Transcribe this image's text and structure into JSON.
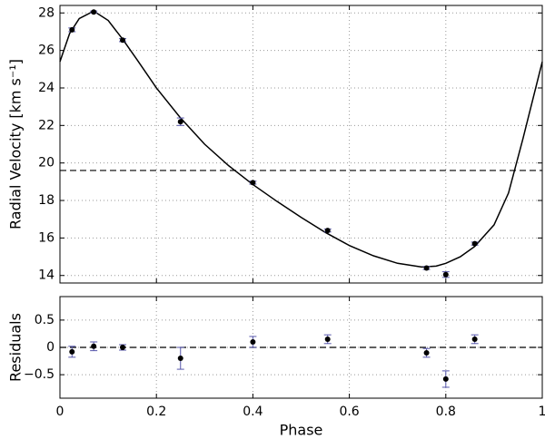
{
  "chart_data": [
    {
      "type": "scatter",
      "ylabel": "Radial Velocity [km s⁻¹]",
      "x": [
        0.025,
        0.07,
        0.13,
        0.25,
        0.4,
        0.555,
        0.76,
        0.8,
        0.86
      ],
      "values": [
        27.1,
        28.05,
        26.55,
        22.2,
        18.95,
        16.4,
        14.4,
        14.05,
        15.7
      ],
      "errors": [
        0.1,
        0.05,
        0.08,
        0.2,
        0.08,
        0.08,
        0.08,
        0.15,
        0.08
      ],
      "model": {
        "x": [
          0,
          0.02,
          0.04,
          0.07,
          0.1,
          0.13,
          0.16,
          0.2,
          0.25,
          0.3,
          0.35,
          0.4,
          0.45,
          0.5,
          0.55,
          0.6,
          0.65,
          0.7,
          0.75,
          0.78,
          0.8,
          0.83,
          0.86,
          0.9,
          0.93,
          0.96,
          1.0
        ],
        "values": [
          25.4,
          26.9,
          27.7,
          28.1,
          27.6,
          26.6,
          25.5,
          24.0,
          22.4,
          21.0,
          19.85,
          18.85,
          17.95,
          17.1,
          16.3,
          15.6,
          15.05,
          14.65,
          14.45,
          14.5,
          14.65,
          15.0,
          15.55,
          16.7,
          18.4,
          21.3,
          25.4
        ]
      },
      "hline": 19.6,
      "xlim": [
        0,
        1
      ],
      "xticks": [
        0,
        0.2,
        0.4,
        0.6,
        0.8,
        1
      ],
      "ylim": [
        13.6,
        28.4
      ],
      "yticks": [
        14,
        16,
        18,
        20,
        22,
        24,
        26,
        28
      ],
      "grid": true,
      "color": "#000000",
      "error_color": "#5555aa"
    },
    {
      "type": "scatter",
      "ylabel": "Residuals",
      "xlabel": "Phase",
      "x": [
        0.025,
        0.07,
        0.13,
        0.25,
        0.4,
        0.555,
        0.76,
        0.8,
        0.86
      ],
      "values": [
        -0.08,
        0.02,
        0.0,
        -0.2,
        0.1,
        0.15,
        -0.1,
        -0.58,
        0.15
      ],
      "errors": [
        0.1,
        0.08,
        0.05,
        0.2,
        0.1,
        0.08,
        0.08,
        0.15,
        0.08
      ],
      "hline": 0,
      "xlim": [
        0,
        1
      ],
      "xticks": [
        0,
        0.2,
        0.4,
        0.6,
        0.8,
        1
      ],
      "ylim": [
        -0.93,
        0.93
      ],
      "yticks": [
        {
          "value": -0.5,
          "label": "−0.5"
        },
        0,
        0.5
      ],
      "grid": true,
      "color": "#000000",
      "error_color": "#5555aa"
    }
  ]
}
